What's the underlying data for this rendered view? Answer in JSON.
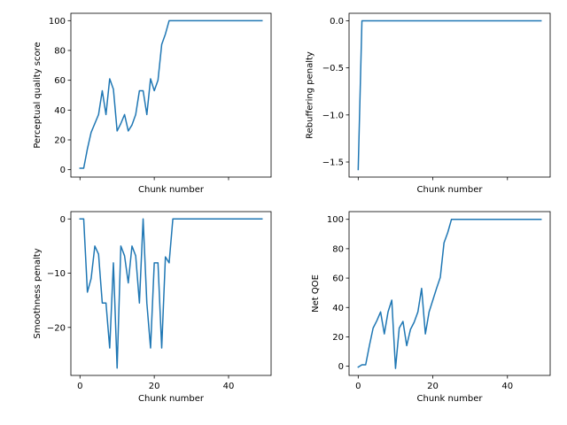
{
  "figure": {
    "background": "#ffffff",
    "line_color": "#1f77b4"
  },
  "chart_data": [
    {
      "type": "line",
      "xlabel": "Chunk number",
      "ylabel": "Perceptual quality score",
      "xlim": [
        -2.45,
        51.45
      ],
      "ylim": [
        -4.95,
        104.95
      ],
      "xticks": [
        0,
        20,
        40
      ],
      "xtick_labels_visible": false,
      "yticks": [
        0,
        20,
        40,
        60,
        80,
        100
      ],
      "ytick_labels": [
        "0",
        "20",
        "40",
        "60",
        "80",
        "100"
      ],
      "grid": false,
      "x": [
        0,
        1,
        2,
        3,
        4,
        5,
        6,
        7,
        8,
        9,
        10,
        11,
        12,
        13,
        14,
        15,
        16,
        17,
        18,
        19,
        20,
        21,
        22,
        23,
        24,
        25,
        26,
        27,
        28,
        29,
        30,
        31,
        32,
        33,
        34,
        35,
        36,
        37,
        38,
        39,
        40,
        41,
        42,
        43,
        44,
        45,
        46,
        47,
        48,
        49
      ],
      "values": [
        1,
        1,
        14,
        25,
        31,
        37,
        53,
        37,
        61,
        54,
        26,
        31,
        37,
        26,
        30,
        37,
        53,
        53,
        37,
        61,
        53,
        60,
        84,
        91,
        100,
        100,
        100,
        100,
        100,
        100,
        100,
        100,
        100,
        100,
        100,
        100,
        100,
        100,
        100,
        100,
        100,
        100,
        100,
        100,
        100,
        100,
        100,
        100,
        100,
        100
      ]
    },
    {
      "type": "line",
      "xlabel": "Chunk number",
      "ylabel": "Rebuffering penalty",
      "xlim": [
        -2.45,
        51.45
      ],
      "ylim": [
        -1.66,
        0.08
      ],
      "xticks": [
        0,
        20,
        40
      ],
      "xtick_labels_visible": false,
      "yticks": [
        0,
        -0.5,
        -1.0,
        -1.5
      ],
      "ytick_labels": [
        "0.0",
        "−0.5",
        "−1.0",
        "−1.5"
      ],
      "grid": false,
      "x": [
        0,
        1,
        2,
        3,
        4,
        5,
        6,
        7,
        8,
        9,
        10,
        11,
        12,
        13,
        14,
        15,
        16,
        17,
        18,
        19,
        20,
        21,
        22,
        23,
        24,
        25,
        26,
        27,
        28,
        29,
        30,
        31,
        32,
        33,
        34,
        35,
        36,
        37,
        38,
        39,
        40,
        41,
        42,
        43,
        44,
        45,
        46,
        47,
        48,
        49
      ],
      "values": [
        -1.58,
        0,
        0,
        0,
        0,
        0,
        0,
        0,
        0,
        0,
        0,
        0,
        0,
        0,
        0,
        0,
        0,
        0,
        0,
        0,
        0,
        0,
        0,
        0,
        0,
        0,
        0,
        0,
        0,
        0,
        0,
        0,
        0,
        0,
        0,
        0,
        0,
        0,
        0,
        0,
        0,
        0,
        0,
        0,
        0,
        0,
        0,
        0,
        0,
        0
      ]
    },
    {
      "type": "line",
      "xlabel": "Chunk number",
      "ylabel": "Smoothness penalty",
      "xlim": [
        -2.45,
        51.45
      ],
      "ylim": [
        -28.85,
        1.35
      ],
      "xticks": [
        0,
        20,
        40
      ],
      "xtick_labels": [
        "0",
        "20",
        "40"
      ],
      "yticks": [
        0,
        -10,
        -20
      ],
      "ytick_labels": [
        "0",
        "−10",
        "−20"
      ],
      "grid": false,
      "x": [
        0,
        1,
        2,
        3,
        4,
        5,
        6,
        7,
        8,
        9,
        10,
        11,
        12,
        13,
        14,
        15,
        16,
        17,
        18,
        19,
        20,
        21,
        22,
        23,
        24,
        25,
        26,
        27,
        28,
        29,
        30,
        31,
        32,
        33,
        34,
        35,
        36,
        37,
        38,
        39,
        40,
        41,
        42,
        43,
        44,
        45,
        46,
        47,
        48,
        49
      ],
      "values": [
        0,
        0,
        -13.5,
        -11,
        -5,
        -6.5,
        -15.5,
        -15.5,
        -23.8,
        -8.1,
        -27.5,
        -5,
        -6.8,
        -11.8,
        -5,
        -6.8,
        -15.5,
        0,
        -15.5,
        -23.8,
        -8.1,
        -8.1,
        -23.8,
        -7,
        -8.1,
        0,
        0,
        0,
        0,
        0,
        0,
        0,
        0,
        0,
        0,
        0,
        0,
        0,
        0,
        0,
        0,
        0,
        0,
        0,
        0,
        0,
        0,
        0,
        0,
        0
      ]
    },
    {
      "type": "line",
      "xlabel": "Chunk number",
      "ylabel": "Net QOE",
      "xlim": [
        -2.45,
        51.45
      ],
      "ylim": [
        -6.25,
        105.25
      ],
      "xticks": [
        0,
        20,
        40
      ],
      "xtick_labels": [
        "0",
        "20",
        "40"
      ],
      "yticks": [
        0,
        20,
        40,
        60,
        80,
        100
      ],
      "ytick_labels": [
        "0",
        "20",
        "40",
        "60",
        "80",
        "100"
      ],
      "grid": false,
      "x": [
        0,
        1,
        2,
        3,
        4,
        5,
        6,
        7,
        8,
        9,
        10,
        11,
        12,
        13,
        14,
        15,
        16,
        17,
        18,
        19,
        20,
        21,
        22,
        23,
        24,
        25,
        26,
        27,
        28,
        29,
        30,
        31,
        32,
        33,
        34,
        35,
        36,
        37,
        38,
        39,
        40,
        41,
        42,
        43,
        44,
        45,
        46,
        47,
        48,
        49
      ],
      "values": [
        -0.6,
        1,
        1,
        14,
        26,
        31,
        37,
        22,
        37,
        45,
        -1.5,
        26,
        30.5,
        14,
        25,
        30,
        37,
        53,
        22,
        37,
        45,
        53,
        60.5,
        84,
        91,
        100,
        100,
        100,
        100,
        100,
        100,
        100,
        100,
        100,
        100,
        100,
        100,
        100,
        100,
        100,
        100,
        100,
        100,
        100,
        100,
        100,
        100,
        100,
        100,
        100
      ]
    }
  ]
}
